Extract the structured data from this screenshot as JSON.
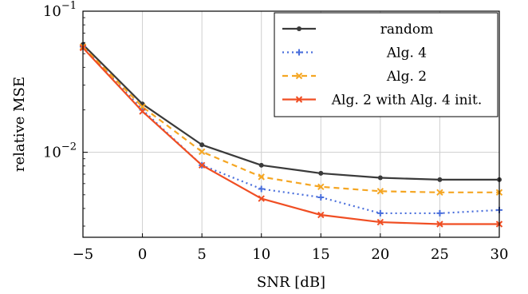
{
  "chart_data": {
    "type": "line",
    "xlabel": "SNR [dB]",
    "ylabel": "relative MSE",
    "x": [
      -5,
      0,
      5,
      10,
      15,
      20,
      25,
      30
    ],
    "xticks": [
      "−5",
      "0",
      "5",
      "10",
      "15",
      "20",
      "25",
      "30"
    ],
    "xlim": [
      -5,
      30
    ],
    "yscale": "log",
    "ylim": [
      0.0025,
      0.1
    ],
    "ytick_labels": [
      {
        "base": "10",
        "exp": "−1",
        "value": 0.1
      },
      {
        "base": "10",
        "exp": "−2",
        "value": 0.01
      }
    ],
    "grid": true,
    "legend_position": "top-right",
    "series": [
      {
        "name": "random",
        "color": "#3a3a3a",
        "style": "solid",
        "marker": "dot",
        "values": [
          0.058,
          0.022,
          0.0113,
          0.0081,
          0.0071,
          0.0066,
          0.0064,
          0.0064
        ]
      },
      {
        "name": "Alg. 4",
        "color": "#4a6fdc",
        "style": "dotted",
        "marker": "plus",
        "values": [
          0.056,
          0.02,
          0.0081,
          0.0055,
          0.0048,
          0.0037,
          0.0037,
          0.0039
        ]
      },
      {
        "name": "Alg. 2",
        "color": "#f5a623",
        "style": "dashed",
        "marker": "cross",
        "values": [
          0.056,
          0.021,
          0.0101,
          0.0067,
          0.0057,
          0.0053,
          0.0052,
          0.0052
        ]
      },
      {
        "name": "Alg. 2 with Alg. 4 init.",
        "color": "#f04e23",
        "style": "solid",
        "marker": "cross",
        "values": [
          0.055,
          0.0195,
          0.0081,
          0.0047,
          0.0036,
          0.0032,
          0.0031,
          0.0031
        ]
      }
    ]
  }
}
